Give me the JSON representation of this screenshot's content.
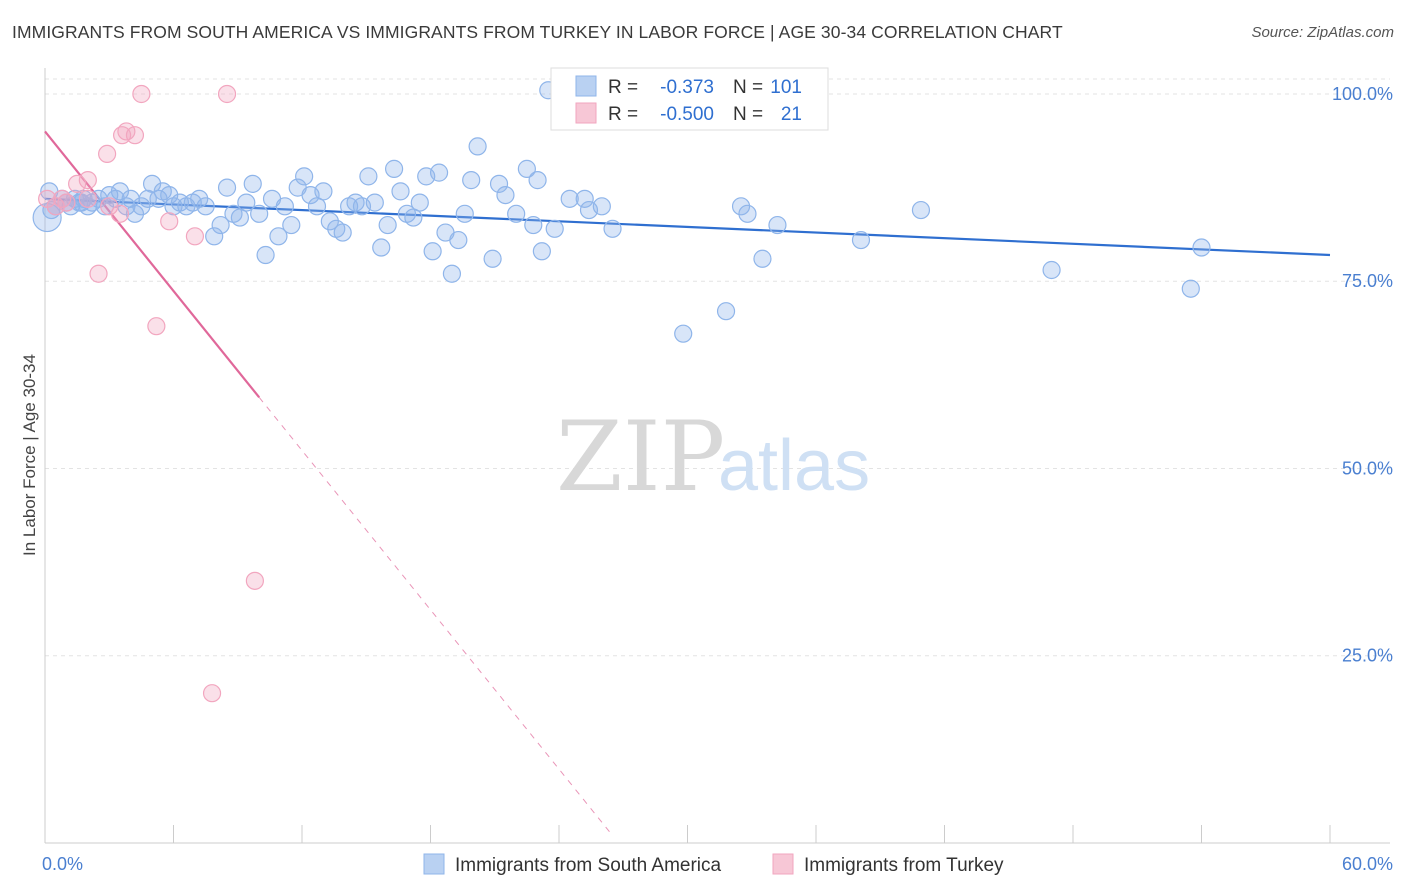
{
  "title": "IMMIGRANTS FROM SOUTH AMERICA VS IMMIGRANTS FROM TURKEY IN LABOR FORCE | AGE 30-34 CORRELATION CHART",
  "source": "Source: ZipAtlas.com",
  "watermark": {
    "zip": "ZIP",
    "atlas": "atlas"
  },
  "chart_data": {
    "type": "scatter",
    "title": "IMMIGRANTS FROM SOUTH AMERICA VS IMMIGRANTS FROM TURKEY IN LABOR FORCE | AGE 30-34 CORRELATION CHART",
    "xlabel": "",
    "ylabel": "In Labor Force | Age 30-34",
    "xlim": [
      0,
      60
    ],
    "ylim": [
      0,
      102
    ],
    "x_tick_labels": [
      "0.0%",
      "60.0%"
    ],
    "y_ticks": [
      25,
      50,
      75,
      100
    ],
    "y_tick_labels": [
      "25.0%",
      "50.0%",
      "75.0%",
      "100.0%"
    ],
    "grid": true,
    "legend_position": "top-center",
    "legend": {
      "r_label": "R =",
      "n_label": "N =",
      "entries": [
        {
          "r": "-0.373",
          "n": "101"
        },
        {
          "r": "-0.500",
          "n": "21"
        }
      ]
    },
    "series": [
      {
        "name": "Immigrants from South America",
        "color": "#8fb5ea",
        "line_color": "#2f6fd0",
        "trend": {
          "x": [
            0,
            60
          ],
          "y": [
            86.0,
            78.5
          ],
          "dashed_to": null
        },
        "points": [
          [
            0.1,
            83.5
          ],
          [
            0.3,
            84.5
          ],
          [
            0.5,
            85.0
          ],
          [
            0.8,
            86.0
          ],
          [
            1.0,
            85.5
          ],
          [
            1.2,
            85.0
          ],
          [
            1.4,
            86.0
          ],
          [
            1.6,
            85.5
          ],
          [
            1.8,
            86.0
          ],
          [
            2.0,
            85.0
          ],
          [
            2.2,
            85.5
          ],
          [
            2.5,
            86.0
          ],
          [
            2.8,
            85.0
          ],
          [
            3.0,
            86.5
          ],
          [
            3.3,
            86.0
          ],
          [
            3.5,
            87.0
          ],
          [
            3.8,
            85.0
          ],
          [
            4.0,
            86.0
          ],
          [
            4.2,
            84.0
          ],
          [
            4.5,
            85.0
          ],
          [
            4.8,
            86.0
          ],
          [
            5.0,
            88.0
          ],
          [
            5.3,
            86.0
          ],
          [
            5.5,
            87.0
          ],
          [
            5.8,
            86.5
          ],
          [
            6.0,
            85.0
          ],
          [
            6.3,
            85.5
          ],
          [
            6.6,
            85.0
          ],
          [
            6.9,
            85.5
          ],
          [
            7.2,
            86.0
          ],
          [
            7.5,
            85.0
          ],
          [
            7.9,
            81.0
          ],
          [
            8.2,
            82.5
          ],
          [
            8.5,
            87.5
          ],
          [
            8.8,
            84.0
          ],
          [
            9.1,
            83.5
          ],
          [
            9.4,
            85.5
          ],
          [
            9.7,
            88.0
          ],
          [
            10.0,
            84.0
          ],
          [
            10.3,
            78.5
          ],
          [
            10.6,
            86.0
          ],
          [
            10.9,
            81.0
          ],
          [
            11.2,
            85.0
          ],
          [
            11.5,
            82.5
          ],
          [
            11.8,
            87.5
          ],
          [
            12.1,
            89.0
          ],
          [
            12.4,
            86.5
          ],
          [
            12.7,
            85.0
          ],
          [
            13.0,
            87.0
          ],
          [
            13.3,
            83.0
          ],
          [
            13.6,
            82.0
          ],
          [
            13.9,
            81.5
          ],
          [
            14.2,
            85.0
          ],
          [
            14.5,
            85.5
          ],
          [
            14.8,
            85.0
          ],
          [
            15.1,
            89.0
          ],
          [
            15.4,
            85.5
          ],
          [
            15.7,
            79.5
          ],
          [
            16.0,
            82.5
          ],
          [
            16.3,
            90.0
          ],
          [
            16.6,
            87.0
          ],
          [
            16.9,
            84.0
          ],
          [
            17.2,
            83.5
          ],
          [
            17.5,
            85.5
          ],
          [
            17.8,
            89.0
          ],
          [
            18.1,
            79.0
          ],
          [
            18.4,
            89.5
          ],
          [
            18.7,
            81.5
          ],
          [
            19.0,
            76.0
          ],
          [
            19.3,
            80.5
          ],
          [
            19.6,
            84.0
          ],
          [
            19.9,
            88.5
          ],
          [
            20.2,
            93.0
          ],
          [
            20.9,
            78.0
          ],
          [
            21.5,
            86.5
          ],
          [
            21.2,
            88.0
          ],
          [
            22.0,
            84.0
          ],
          [
            22.5,
            90.0
          ],
          [
            22.8,
            82.5
          ],
          [
            23.0,
            88.5
          ],
          [
            23.2,
            79.0
          ],
          [
            23.8,
            82.0
          ],
          [
            24.5,
            86.0
          ],
          [
            25.2,
            86.0
          ],
          [
            26.0,
            85.0
          ],
          [
            25.4,
            84.5
          ],
          [
            26.5,
            82.0
          ],
          [
            29.8,
            68.0
          ],
          [
            31.8,
            71.0
          ],
          [
            32.5,
            85.0
          ],
          [
            32.8,
            84.0
          ],
          [
            33.5,
            78.0
          ],
          [
            34.2,
            82.5
          ],
          [
            38.1,
            80.5
          ],
          [
            40.9,
            84.5
          ],
          [
            47.0,
            76.5
          ],
          [
            53.5,
            74.0
          ],
          [
            54.0,
            79.5
          ],
          [
            23.5,
            100.5
          ],
          [
            0.2,
            87.0
          ],
          [
            1.7,
            85.5
          ]
        ]
      },
      {
        "name": "Immigrants from Turkey",
        "color": "#f2a6bf",
        "line_color": "#e0689a",
        "trend": {
          "x": [
            0,
            10
          ],
          "y": [
            95.0,
            59.5
          ],
          "dashed_to": [
            26.5,
            1.0
          ]
        },
        "points": [
          [
            0.1,
            86.0
          ],
          [
            0.5,
            85.0
          ],
          [
            1.0,
            85.5
          ],
          [
            1.5,
            88.0
          ],
          [
            2.0,
            86.0
          ],
          [
            2.5,
            76.0
          ],
          [
            3.0,
            85.0
          ],
          [
            3.5,
            84.0
          ],
          [
            2.9,
            92.0
          ],
          [
            3.6,
            94.5
          ],
          [
            3.8,
            95.0
          ],
          [
            4.2,
            94.5
          ],
          [
            4.5,
            100.0
          ],
          [
            5.2,
            69.0
          ],
          [
            5.8,
            83.0
          ],
          [
            7.0,
            81.0
          ],
          [
            8.5,
            100.0
          ],
          [
            7.8,
            20.0
          ],
          [
            9.8,
            35.0
          ],
          [
            2.0,
            88.5
          ],
          [
            0.8,
            86.0
          ]
        ]
      }
    ]
  }
}
